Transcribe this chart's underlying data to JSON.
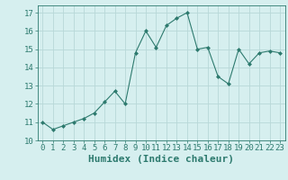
{
  "x": [
    0,
    1,
    2,
    3,
    4,
    5,
    6,
    7,
    8,
    9,
    10,
    11,
    12,
    13,
    14,
    15,
    16,
    17,
    18,
    19,
    20,
    21,
    22,
    23
  ],
  "y": [
    11.0,
    10.6,
    10.8,
    11.0,
    11.2,
    11.5,
    12.1,
    12.7,
    12.0,
    14.8,
    16.0,
    15.1,
    16.3,
    16.7,
    17.0,
    15.0,
    15.1,
    13.5,
    13.1,
    15.0,
    14.2,
    14.8,
    14.9,
    14.8
  ],
  "line_color": "#2d7a6e",
  "marker": "D",
  "marker_size": 2,
  "bg_color": "#d6efef",
  "grid_color": "#b8d8d8",
  "xlabel": "Humidex (Indice chaleur)",
  "ylim": [
    10,
    17.4
  ],
  "xlim": [
    -0.5,
    23.5
  ],
  "yticks": [
    10,
    11,
    12,
    13,
    14,
    15,
    16,
    17
  ],
  "xticks": [
    0,
    1,
    2,
    3,
    4,
    5,
    6,
    7,
    8,
    9,
    10,
    11,
    12,
    13,
    14,
    15,
    16,
    17,
    18,
    19,
    20,
    21,
    22,
    23
  ],
  "tick_fontsize": 6.5,
  "xlabel_fontsize": 8,
  "label_color": "#2d7a6e"
}
